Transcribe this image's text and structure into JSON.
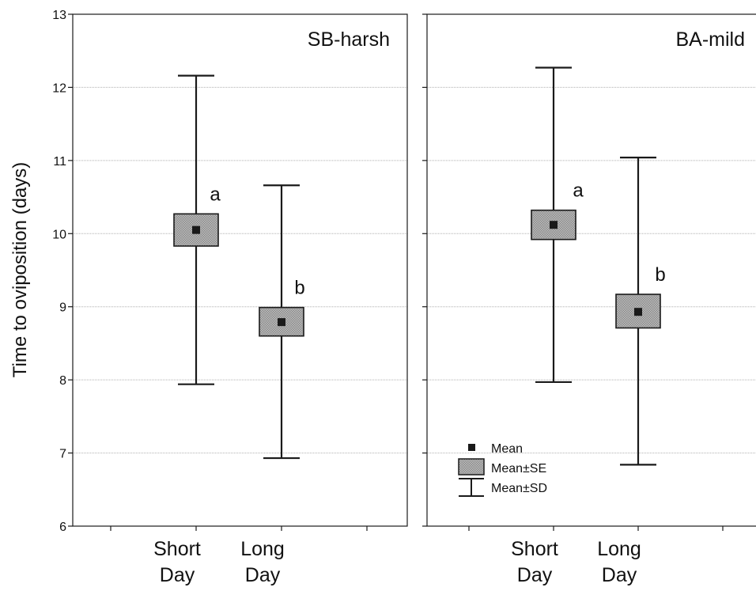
{
  "colors": {
    "box_fill": "#b3b3b3",
    "line": "#1a1a1a",
    "grid": "#b0b0b0",
    "mean_marker": "#1a1a1a"
  },
  "chart_data": {
    "type": "box",
    "ylabel": "Time to oviposition (days)",
    "ylim": [
      6,
      13
    ],
    "yticks": [
      "6",
      "7",
      "8",
      "9",
      "10",
      "11",
      "12",
      "13"
    ],
    "grid": true,
    "legend": {
      "placement": "bottom-left of right panel",
      "entries": [
        {
          "symbol": "mean-marker",
          "label": "Mean"
        },
        {
          "symbol": "se-box",
          "label": "Mean±SE"
        },
        {
          "symbol": "sd-whisker",
          "label": "Mean±SD"
        }
      ]
    },
    "panels": [
      {
        "title": "SB-harsh",
        "groups": [
          {
            "label_line1": "Short",
            "label_line2": "Day",
            "mean": 10.05,
            "se_low": 9.83,
            "se_high": 10.27,
            "sd_low": 7.94,
            "sd_high": 12.16,
            "letter": "a"
          },
          {
            "label_line1": "Long",
            "label_line2": "Day",
            "mean": 8.79,
            "se_low": 8.6,
            "se_high": 8.99,
            "sd_low": 6.93,
            "sd_high": 10.66,
            "letter": "b"
          }
        ]
      },
      {
        "title": "BA-mild",
        "groups": [
          {
            "label_line1": "Short",
            "label_line2": "Day",
            "mean": 10.12,
            "se_low": 9.92,
            "se_high": 10.32,
            "sd_low": 7.97,
            "sd_high": 12.27,
            "letter": "a"
          },
          {
            "label_line1": "Long",
            "label_line2": "Day",
            "mean": 8.93,
            "se_low": 8.71,
            "se_high": 9.17,
            "sd_low": 6.84,
            "sd_high": 11.04,
            "letter": "b"
          }
        ]
      }
    ]
  }
}
